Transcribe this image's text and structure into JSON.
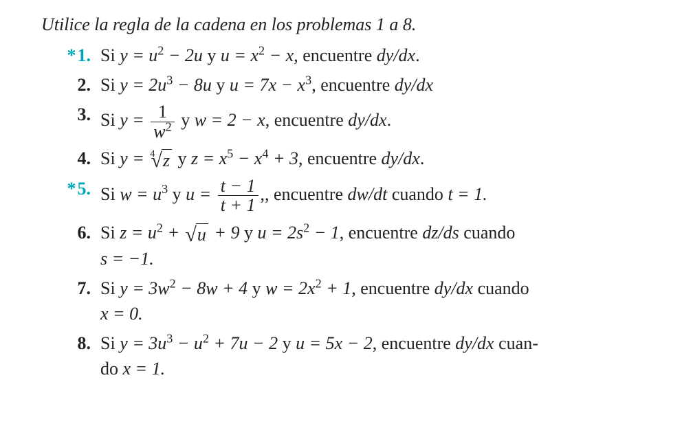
{
  "header": "Utilice la regla de la cadena en los problemas 1 a 8.",
  "star_color": "#00a6b7",
  "problems": [
    {
      "starred": true,
      "number": "1.",
      "parts": {
        "pre": "Si ",
        "eq1_lhs": "y",
        "eq1_rhs_base1": "u",
        "eq1_rhs_exp1": "2",
        "eq1_rhs_rest": " − 2",
        "eq1_rhs_var1": "u",
        "conj": " y ",
        "eq2_lhs": "u",
        "eq2_rhs_base": "x",
        "eq2_rhs_exp": "2",
        "eq2_rhs_rest": " − ",
        "eq2_rhs_var": "x",
        "tail": ", encuentre ",
        "deriv": "dy/dx",
        "dot": "."
      }
    },
    {
      "starred": false,
      "number": "2.",
      "parts": {
        "pre": "Si ",
        "eq1": "y = 2u",
        "eq1_exp": "3",
        "eq1_rest": " − 8",
        "eq1_var": "u",
        "conj": " y ",
        "eq2": "u = 7x − x",
        "eq2_exp": "3",
        "tail": ", encuentre ",
        "deriv": "dy/dx"
      }
    },
    {
      "starred": false,
      "number": "3.",
      "parts": {
        "pre": "Si ",
        "eq1_lhs": "y = ",
        "frac_num": "1",
        "frac_den_base": "w",
        "frac_den_exp": "2",
        "conj": " y ",
        "eq2": "w = 2 − x",
        "tail": ", encuentre ",
        "deriv": "dy/dx",
        "dot": "."
      }
    },
    {
      "starred": false,
      "number": "4.",
      "parts": {
        "pre": "Si ",
        "eq1_lhs": "y = ",
        "root_index": "4",
        "radicand": "z",
        "conj": " y ",
        "eq2": "z = x",
        "eq2_exp1": "5",
        "eq2_mid": " − x",
        "eq2_exp2": "4",
        "eq2_rest": " + 3",
        "tail": ", encuentre ",
        "deriv": "dy/dx",
        "dot": "."
      }
    },
    {
      "starred": true,
      "number": "5.",
      "parts": {
        "pre": "Si ",
        "eq1": "w = u",
        "eq1_exp": "3",
        "conj": " y ",
        "eq2_lhs": "u = ",
        "frac_num": "t − 1",
        "frac_den": "t + 1",
        "tail1": ", encuentre ",
        "deriv": "dw/dt",
        "tail2": " cuando ",
        "cond": "t = 1.",
        "comma_after_frac": ","
      }
    },
    {
      "starred": false,
      "number": "6.",
      "parts": {
        "pre": "Si ",
        "eq1": "z = u",
        "eq1_exp": "2",
        "eq1_plus": " + ",
        "radicand": "u",
        "eq1_rest": " + 9",
        "conj": " y ",
        "eq2": "u = 2s",
        "eq2_exp": "2",
        "eq2_rest": " − 1",
        "tail": ", encuentre ",
        "deriv": "dz/ds",
        "tail2": " cuando",
        "cont": "s = −1."
      }
    },
    {
      "starred": false,
      "number": "7.",
      "parts": {
        "pre": "Si ",
        "eq1": "y = 3w",
        "eq1_exp": "2",
        "eq1_rest": " − 8w + 4",
        "conj": " y ",
        "eq2": "w = 2x",
        "eq2_exp": "2",
        "eq2_rest": " + 1",
        "tail": ", encuentre ",
        "deriv": "dy/dx",
        "tail2": " cuando",
        "cont": "x = 0."
      }
    },
    {
      "starred": false,
      "number": "8.",
      "parts": {
        "pre": "Si ",
        "eq1": "y = 3u",
        "eq1_exp1": "3",
        "eq1_mid": " − u",
        "eq1_exp2": "2",
        "eq1_rest": " + 7u − 2",
        "conj": " y ",
        "eq2": "u = 5x − 2",
        "tail": ", encuentre ",
        "deriv": "dy/dx",
        "tail2": " cuan-",
        "cont": "do x = 1."
      }
    }
  ]
}
